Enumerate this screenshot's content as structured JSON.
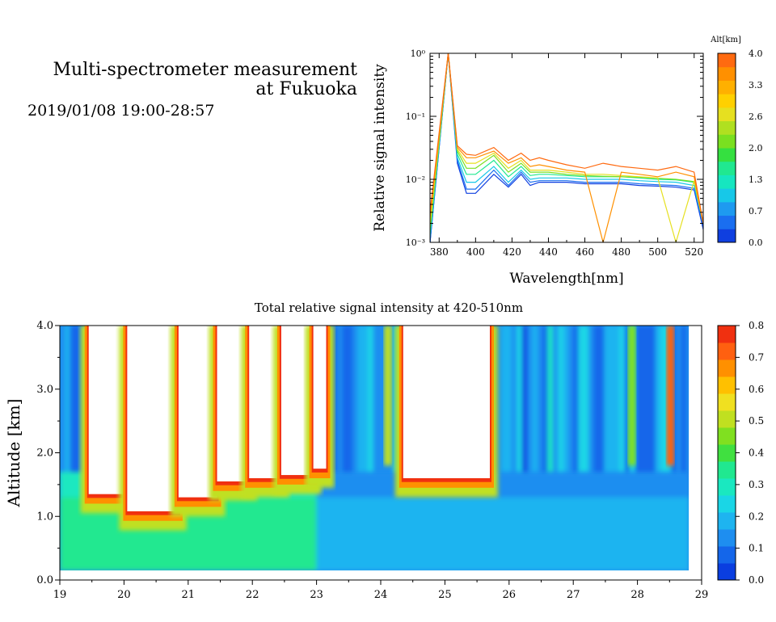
{
  "header": {
    "title_line1": "Multi-spectrometer measurement",
    "title_line2": "at Fukuoka",
    "date": "2019/01/08 19:00-28:57"
  },
  "chart_data": [
    {
      "type": "line",
      "xlabel": "Wavelength[nm]",
      "ylabel": "Relative signal intensity",
      "xlim": [
        375,
        525
      ],
      "xticks": [
        380,
        400,
        420,
        440,
        460,
        480,
        500,
        520
      ],
      "ylim": [
        0.001,
        1
      ],
      "yscale": "log",
      "yticks": [
        "10⁻³",
        "10⁻²",
        "10⁻¹",
        "10⁰"
      ],
      "colorbar": {
        "label": "Alt[km]",
        "ticks": [
          "0.0",
          "0.7",
          "1.3",
          "2.0",
          "2.6",
          "3.3",
          "4.0"
        ],
        "colors": [
          "#0f3fe0",
          "#1a6ef0",
          "#1e9af0",
          "#17c8e8",
          "#16e6c0",
          "#20e890",
          "#35e040",
          "#7ae020",
          "#b0e020",
          "#e6e020",
          "#ffd000",
          "#ffb000",
          "#ff9000",
          "#ff6a10"
        ]
      },
      "x": [
        375,
        385,
        390,
        395,
        400,
        410,
        418,
        425,
        430,
        435,
        440,
        450,
        460,
        470,
        480,
        490,
        500,
        510,
        520,
        525
      ],
      "series": [
        {
          "color": "#0f3fe0",
          "values": [
            0.001,
            1.0,
            0.018,
            0.006,
            0.006,
            0.012,
            0.0075,
            0.012,
            0.008,
            0.009,
            0.009,
            0.009,
            0.0085,
            0.0085,
            0.0085,
            0.008,
            0.0078,
            0.0075,
            0.0068,
            0.0016
          ]
        },
        {
          "color": "#1a6ef0",
          "values": [
            0.001,
            1.0,
            0.02,
            0.007,
            0.007,
            0.014,
            0.008,
            0.013,
            0.009,
            0.0095,
            0.0095,
            0.0095,
            0.009,
            0.009,
            0.009,
            0.0085,
            0.0082,
            0.008,
            0.0072,
            0.0018
          ]
        },
        {
          "color": "#17c8e8",
          "values": [
            0.0012,
            1.0,
            0.022,
            0.009,
            0.009,
            0.016,
            0.009,
            0.014,
            0.01,
            0.0105,
            0.0105,
            0.0105,
            0.01,
            0.01,
            0.01,
            0.0095,
            0.0092,
            0.009,
            0.008,
            0.002
          ]
        },
        {
          "color": "#20e890",
          "values": [
            0.0014,
            1.0,
            0.025,
            0.012,
            0.012,
            0.02,
            0.011,
            0.016,
            0.0115,
            0.012,
            0.012,
            0.0115,
            0.011,
            0.011,
            0.011,
            0.0105,
            0.01,
            0.0098,
            0.009,
            0.002
          ]
        },
        {
          "color": "#7ae020",
          "values": [
            0.0016,
            1.0,
            0.028,
            0.015,
            0.015,
            0.024,
            0.013,
            0.018,
            0.013,
            0.013,
            0.013,
            0.012,
            0.0115,
            0.0112,
            0.011,
            0.0108,
            0.0104,
            0.01,
            0.0092,
            0.002
          ]
        },
        {
          "color": "#e6e020",
          "values": [
            0.002,
            1.0,
            0.03,
            0.018,
            0.018,
            0.026,
            0.015,
            0.02,
            0.014,
            0.014,
            0.014,
            0.013,
            0.012,
            0.012,
            0.0115,
            0.011,
            0.0105,
            0.001,
            0.0095,
            0.002
          ]
        },
        {
          "color": "#ff9000",
          "values": [
            0.0025,
            1.0,
            0.032,
            0.022,
            0.022,
            0.028,
            0.018,
            0.022,
            0.016,
            0.017,
            0.016,
            0.014,
            0.013,
            0.001,
            0.013,
            0.012,
            0.011,
            0.013,
            0.011,
            0.002
          ]
        },
        {
          "color": "#ff6a10",
          "values": [
            0.003,
            1.0,
            0.034,
            0.025,
            0.024,
            0.032,
            0.02,
            0.026,
            0.02,
            0.022,
            0.02,
            0.017,
            0.015,
            0.018,
            0.016,
            0.015,
            0.014,
            0.016,
            0.013,
            0.002
          ]
        }
      ]
    },
    {
      "type": "heatmap",
      "title": "Total relative signal intensity at 420-510nm",
      "xlabel": "",
      "ylabel": "Altitude [km]",
      "xlim": [
        19,
        29
      ],
      "xticks": [
        "19",
        "20",
        "21",
        "22",
        "23",
        "24",
        "25",
        "26",
        "27",
        "28",
        "29"
      ],
      "ylim": [
        0,
        4
      ],
      "yticks": [
        "0.0",
        "1.0",
        "2.0",
        "3.0",
        "4.0"
      ],
      "colorbar": {
        "ticks": [
          "0.0",
          "0.1",
          "0.2",
          "0.3",
          "0.4",
          "0.5",
          "0.6",
          "0.7",
          "0.8"
        ],
        "range": [
          0,
          0.8
        ],
        "colors": [
          "#0a3ee0",
          "#1466ea",
          "#1e8ef0",
          "#1eb4f0",
          "#1ad6e6",
          "#1ae8c0",
          "#20e890",
          "#40e040",
          "#80e020",
          "#c0e020",
          "#f0e020",
          "#ffc000",
          "#ff9000",
          "#ff6010",
          "#f03010"
        ]
      },
      "saturated_columns": [
        {
          "x0": 19.45,
          "x1": 20.05,
          "bottom": 1.35
        },
        {
          "x0": 20.05,
          "x1": 20.85,
          "bottom": 1.08
        },
        {
          "x0": 20.85,
          "x1": 21.45,
          "bottom": 1.3
        },
        {
          "x0": 21.45,
          "x1": 21.95,
          "bottom": 1.55
        },
        {
          "x0": 21.95,
          "x1": 22.45,
          "bottom": 1.6
        },
        {
          "x0": 22.45,
          "x1": 22.95,
          "bottom": 1.65
        },
        {
          "x0": 22.95,
          "x1": 23.15,
          "bottom": 1.75
        },
        {
          "x0": 24.35,
          "x1": 25.7,
          "bottom": 1.6
        }
      ],
      "lower_band": [
        {
          "x0": 19,
          "x1": 23,
          "value": 0.33
        },
        {
          "x0": 23,
          "x1": 28.8,
          "value": 0.17
        }
      ]
    }
  ]
}
